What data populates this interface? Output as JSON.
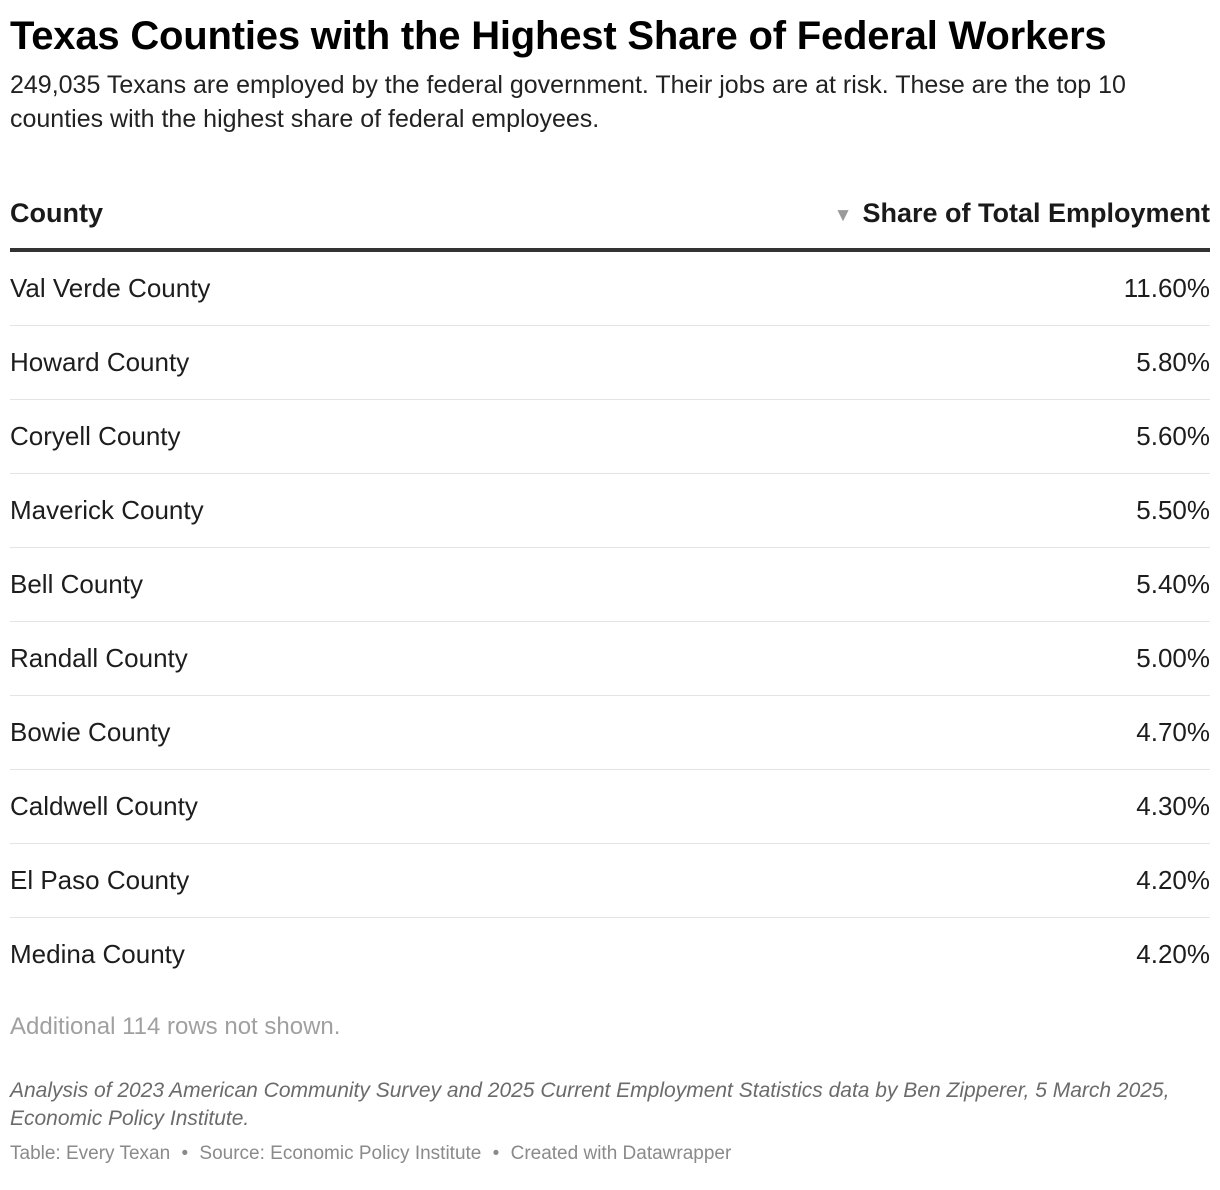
{
  "header": {
    "title": "Texas Counties with the Highest Share of Federal Workers",
    "subtitle": "249,035 Texans are employed by the federal government. Their jobs are at risk. These are the top 10 counties with the highest share of federal employees."
  },
  "chart_data": {
    "type": "table",
    "columns": [
      "County",
      "Share of Total Employment"
    ],
    "sort": {
      "column": "Share of Total Employment",
      "direction": "descending",
      "icon": "sort-descending-icon"
    },
    "rows": [
      {
        "county": "Val Verde County",
        "share": "11.60%",
        "value": 11.6
      },
      {
        "county": "Howard County",
        "share": "5.80%",
        "value": 5.8
      },
      {
        "county": "Coryell County",
        "share": "5.60%",
        "value": 5.6
      },
      {
        "county": "Maverick County",
        "share": "5.50%",
        "value": 5.5
      },
      {
        "county": "Bell County",
        "share": "5.40%",
        "value": 5.4
      },
      {
        "county": "Randall County",
        "share": "5.00%",
        "value": 5.0
      },
      {
        "county": "Bowie County",
        "share": "4.70%",
        "value": 4.7
      },
      {
        "county": "Caldwell County",
        "share": "4.30%",
        "value": 4.3
      },
      {
        "county": "El Paso County",
        "share": "4.20%",
        "value": 4.2
      },
      {
        "county": "Medina County",
        "share": "4.20%",
        "value": 4.2
      }
    ],
    "more_rows_note": "Additional 114 rows not shown."
  },
  "notes": "Analysis of 2023 American Community Survey and 2025 Current Employment Statistics data by Ben Zipperer, 5 March 2025, Economic Policy Institute.",
  "footer": {
    "table_credit": "Table: Every Texan",
    "source": "Source: Economic Policy Institute",
    "created_with": "Created with Datawrapper",
    "separator": "•"
  },
  "colors": {
    "header_rule": "#333333",
    "row_rule": "#e4e4e4",
    "muted_text": "#a0a0a0",
    "sort_icon": "#9a9a9a"
  }
}
